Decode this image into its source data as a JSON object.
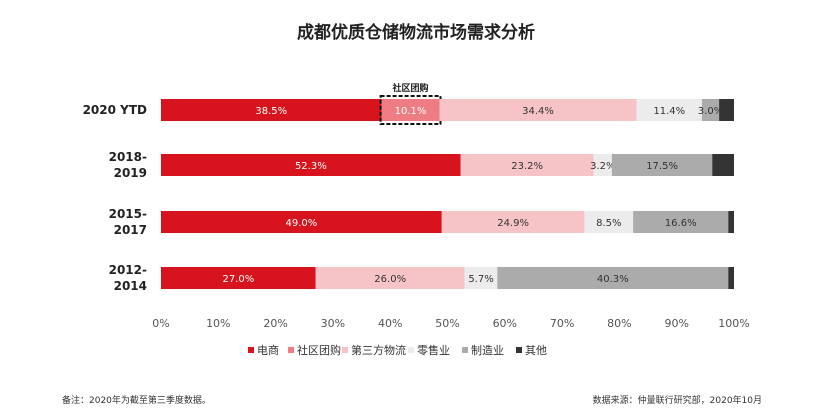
{
  "chart_data": {
    "type": "bar",
    "orientation": "horizontal-stacked-100",
    "title": "成都优质仓储物流市场需求分析",
    "categories": [
      [
        "2020 YTD"
      ],
      [
        "2018-",
        "2019"
      ],
      [
        "2015-",
        "2017"
      ],
      [
        "2012-",
        "2014"
      ]
    ],
    "series": [
      {
        "name": "电商",
        "color": "#d7141e",
        "values": [
          38.5,
          52.3,
          49.0,
          27.0
        ],
        "labels": [
          "38.5%",
          "52.3%",
          "49.0%",
          "27.0%"
        ]
      },
      {
        "name": "社区团购",
        "color": "#ee7d83",
        "values": [
          10.1,
          0,
          0,
          0
        ],
        "labels": [
          "10.1%",
          "",
          "",
          ""
        ]
      },
      {
        "name": "第三方物流",
        "color": "#f6c4c7",
        "values": [
          34.4,
          23.2,
          24.9,
          26.0
        ],
        "labels": [
          "34.4%",
          "23.2%",
          "24.9%",
          "26.0%"
        ]
      },
      {
        "name": "零售业",
        "color": "#ececec",
        "values": [
          11.4,
          3.2,
          8.5,
          5.7
        ],
        "labels": [
          "11.4%",
          "3.2%",
          "8.5%",
          "5.7%"
        ]
      },
      {
        "name": "制造业",
        "color": "#ababab",
        "values": [
          3.0,
          17.5,
          16.6,
          40.3
        ],
        "labels": [
          "3.0%",
          "17.5%",
          "16.6%",
          "40.3%"
        ]
      },
      {
        "name": "其他",
        "color": "#333333",
        "values": [
          2.6,
          3.8,
          1.0,
          1.0
        ],
        "labels": [
          "",
          "",
          "",
          ""
        ]
      }
    ],
    "annotation": "社区团购",
    "xlim": [
      0,
      100
    ],
    "xticks": [
      "0%",
      "10%",
      "20%",
      "30%",
      "40%",
      "50%",
      "60%",
      "70%",
      "80%",
      "90%",
      "100%"
    ],
    "grid": false,
    "legend_position": "bottom"
  },
  "footnote": "备注：2020年为截至第三季度数据。",
  "source": "数据来源：仲量联行研究部，2020年10月"
}
